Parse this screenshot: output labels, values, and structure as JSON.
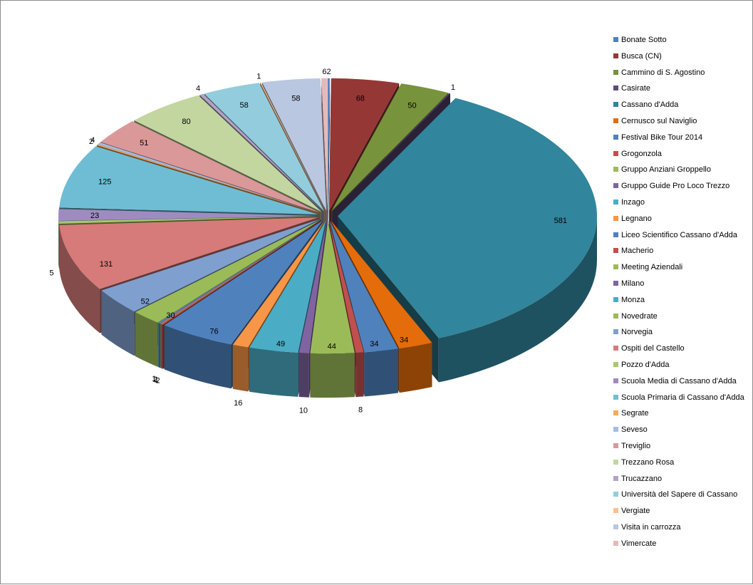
{
  "chart_data": {
    "type": "pie",
    "title": "",
    "categories": [
      "Bonate Sotto",
      "Busca (CN)",
      "Cammino di S. Agostino",
      "Casirate",
      "Cassano d'Adda",
      "Cernusco sul Naviglio",
      "Festival Bike Tour 2014",
      "Grogonzola",
      "Gruppo Anziani Groppello",
      "Gruppo Guide Pro Loco Trezzo",
      "Inzago",
      "Legnano",
      "Liceo Scientifico Cassano d'Adda",
      "Macherio",
      "Meeting Aziendali",
      "Milano",
      "Monza",
      "Novedrate",
      "Norvegia",
      "Ospiti del Castello",
      "Pozzo d'Adda",
      "Scuola Media  di Cassano d'Adda",
      "Scuola Primaria di Cassano d'Adda",
      "Segrate",
      "Seveso",
      "Treviglio",
      "Trezzano Rosa",
      "Trucazzano",
      "Università del  Sapere di Cassano",
      "Vergiate",
      "Visita in carrozza",
      "Vimercate"
    ],
    "values": [
      2,
      68,
      50,
      1,
      581,
      34,
      34,
      8,
      44,
      10,
      49,
      16,
      76,
      2,
      1,
      2,
      1,
      30,
      52,
      131,
      5,
      23,
      125,
      2,
      4,
      51,
      80,
      4,
      58,
      1,
      58,
      6
    ],
    "colors": [
      "#4f81bd",
      "#953735",
      "#77933c",
      "#5f497a",
      "#31859c",
      "#e46c0a",
      "#4f81bd",
      "#c0504d",
      "#9bbb59",
      "#8064a2",
      "#4bacc6",
      "#f79646",
      "#4f81bd",
      "#c0504d",
      "#9bbb59",
      "#8064a2",
      "#4bacc6",
      "#9bbb59",
      "#7f9fcf",
      "#d67b7a",
      "#a6c76d",
      "#9e8cc1",
      "#6fbdd4",
      "#f7a95e",
      "#a5bce0",
      "#da9898",
      "#c4d6a0",
      "#b3a2c7",
      "#93cddd",
      "#fac090",
      "#b9c7e1",
      "#e6b9b8"
    ],
    "legend_position": "right"
  }
}
